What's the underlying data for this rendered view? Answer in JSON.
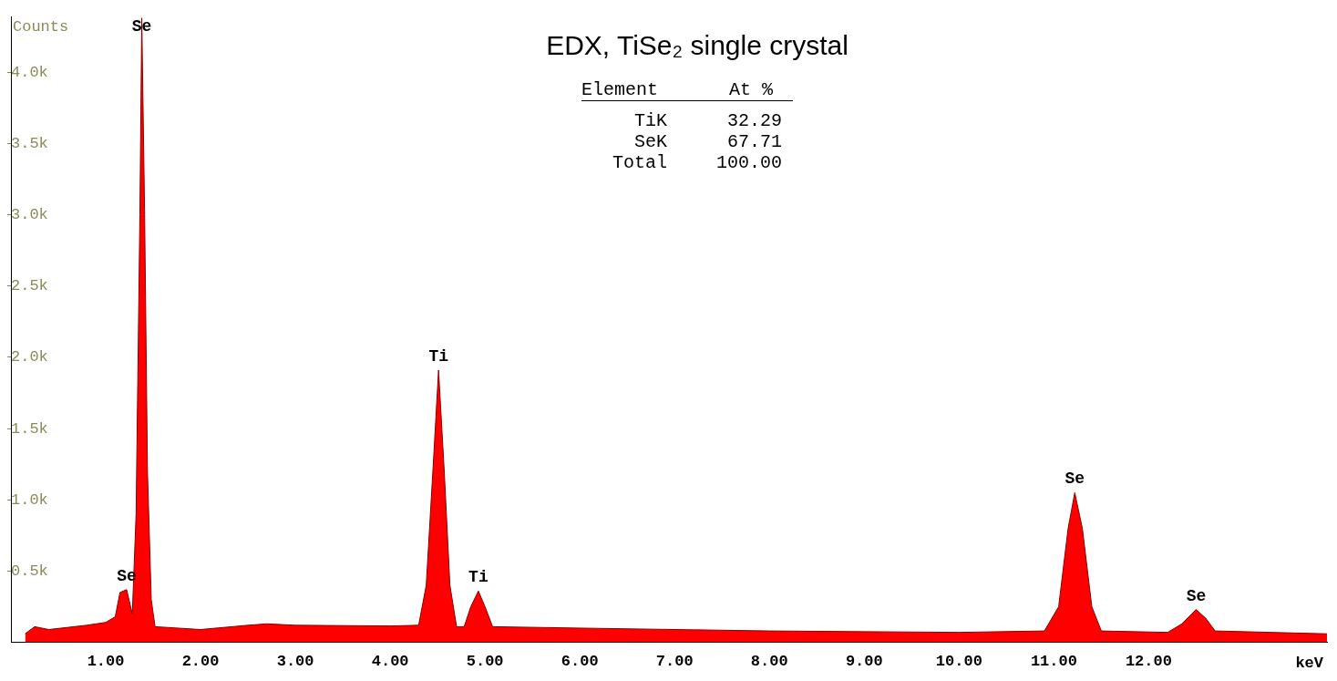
{
  "chart_data": {
    "type": "area",
    "title": "EDX, TiSe₂ single crystal",
    "xlabel": "keV",
    "ylabel": "Counts",
    "x": [
      0.15,
      0.25,
      0.4,
      0.8,
      1.0,
      1.1,
      1.15,
      1.22,
      1.28,
      1.32,
      1.36,
      1.38,
      1.41,
      1.44,
      1.48,
      1.52,
      2.0,
      2.5,
      2.7,
      3.0,
      4.0,
      4.3,
      4.38,
      4.45,
      4.51,
      4.57,
      4.63,
      4.7,
      4.78,
      4.85,
      4.93,
      5.0,
      5.08,
      6.0,
      8.0,
      10.0,
      10.9,
      11.05,
      11.15,
      11.22,
      11.3,
      11.4,
      11.5,
      12.2,
      12.35,
      12.5,
      12.6,
      12.7,
      13.88
    ],
    "series": [
      {
        "color": "#ff0000",
        "values": [
          60,
          110,
          90,
          120,
          140,
          180,
          350,
          370,
          200,
          900,
          3000,
          4380,
          3000,
          1200,
          300,
          110,
          90,
          120,
          130,
          120,
          115,
          120,
          400,
          1200,
          1910,
          1200,
          400,
          110,
          110,
          250,
          360,
          250,
          110,
          100,
          80,
          70,
          80,
          250,
          800,
          1050,
          800,
          250,
          80,
          70,
          130,
          230,
          170,
          80,
          60
        ]
      }
    ],
    "xlim": [
      0,
      13.88
    ],
    "xticks": [
      {
        "value": 1,
        "label": "1.00"
      },
      {
        "value": 2,
        "label": "2.00"
      },
      {
        "value": 3,
        "label": "3.00"
      },
      {
        "value": 4,
        "label": "4.00"
      },
      {
        "value": 5,
        "label": "5.00"
      },
      {
        "value": 6,
        "label": "6.00"
      },
      {
        "value": 7,
        "label": "7.00"
      },
      {
        "value": 8,
        "label": "8.00"
      },
      {
        "value": 9,
        "label": "9.00"
      },
      {
        "value": 10,
        "label": "10.00"
      },
      {
        "value": 11,
        "label": "11.00"
      },
      {
        "value": 12,
        "label": "12.00"
      }
    ],
    "ylim": [
      0,
      4390
    ],
    "yticks": [
      {
        "value": 500,
        "label": "0.5k"
      },
      {
        "value": 1000,
        "label": "1.0k"
      },
      {
        "value": 1500,
        "label": "1.5k"
      },
      {
        "value": 2000,
        "label": "2.0k"
      },
      {
        "value": 2500,
        "label": "2.5k"
      },
      {
        "value": 3000,
        "label": "3.0k"
      },
      {
        "value": 3500,
        "label": "3.5k"
      },
      {
        "value": 4000,
        "label": "4.0k"
      }
    ],
    "grid": false,
    "legend": false,
    "annotations": [
      {
        "text": "Se",
        "x": 1.22,
        "y": 370
      },
      {
        "text": "Se",
        "x": 1.38,
        "y": 4380
      },
      {
        "text": "Ti",
        "x": 4.51,
        "y": 1910
      },
      {
        "text": "Ti",
        "x": 4.93,
        "y": 360
      },
      {
        "text": "Se",
        "x": 11.22,
        "y": 1050
      },
      {
        "text": "Se",
        "x": 12.5,
        "y": 230
      },
      "Element",
      "At %",
      "TiK",
      "32.29",
      "SeK",
      "67.71",
      "Total",
      "100.00"
    ]
  }
}
